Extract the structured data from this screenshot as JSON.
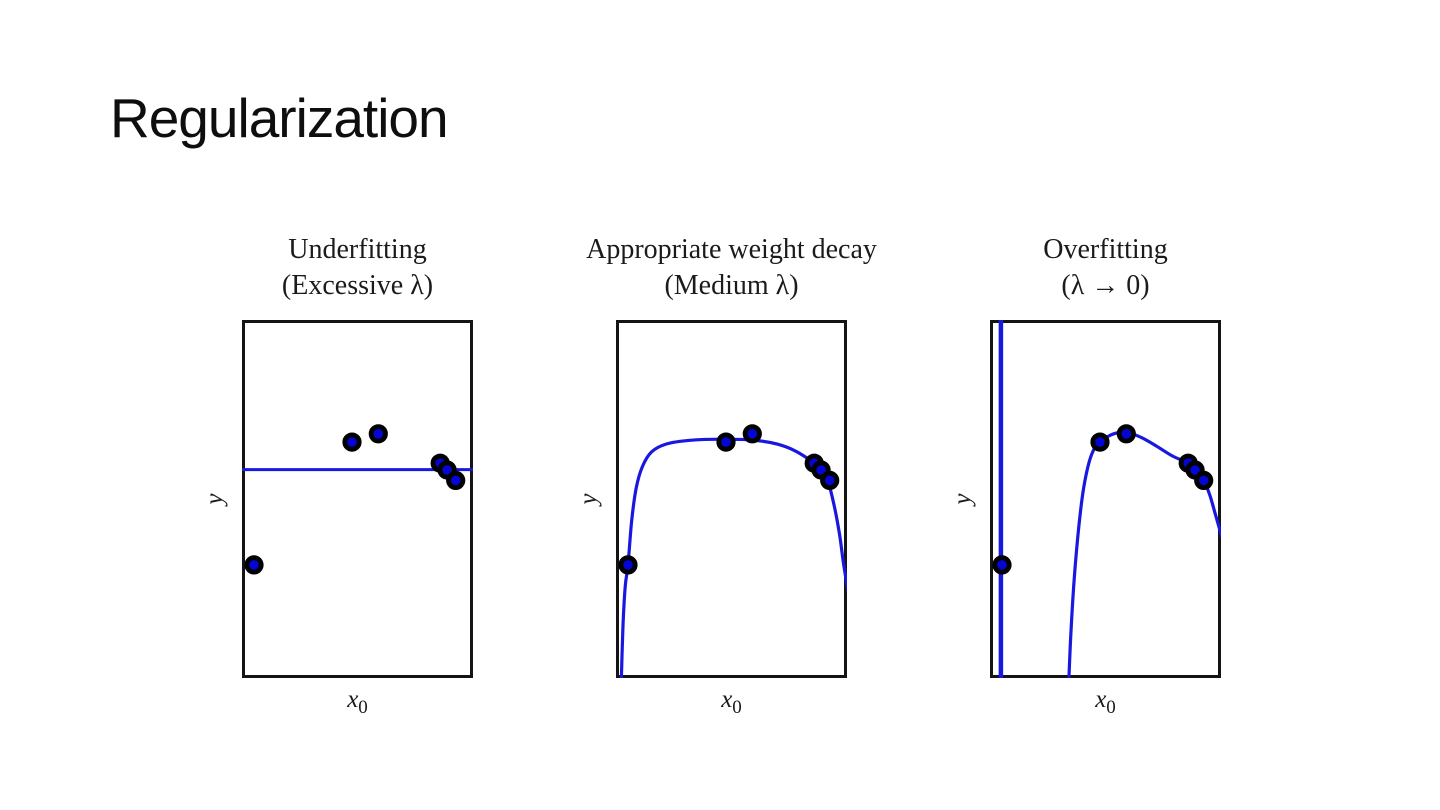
{
  "slide": {
    "title": "Regularization"
  },
  "colors": {
    "background": "#ffffff",
    "title_text": "#0e0e0e",
    "figure_text": "#1b1b1b",
    "box_border": "#141414",
    "curve": "#1818e0",
    "point_fill": "#0505d5",
    "point_stroke": "#000000"
  },
  "chart_data": [
    {
      "id": "underfitting",
      "type": "scatter",
      "title_line1": "Underfitting",
      "title_line2": "(Excessive λ)",
      "xlabel": "x",
      "xlabel_sub": "0",
      "ylabel": "y",
      "axes_note": "no ticks or numeric scale shown; coordinates below are normalized fractions of the plot box (x rightward, y downward)",
      "scatter": [
        [
          0.476,
          0.341
        ],
        [
          0.59,
          0.318
        ],
        [
          0.858,
          0.4
        ],
        [
          0.888,
          0.419
        ],
        [
          0.925,
          0.448
        ],
        [
          0.052,
          0.684
        ]
      ],
      "curves": [
        {
          "name": "flat-fit-line",
          "width": 3,
          "points": [
            [
              -0.01,
              0.418
            ],
            [
              1.01,
              0.418
            ]
          ]
        }
      ]
    },
    {
      "id": "appropriate-weight-decay",
      "type": "scatter",
      "title_line1": "Appropriate weight decay",
      "title_line2": "(Medium λ)",
      "xlabel": "x",
      "xlabel_sub": "0",
      "ylabel": "y",
      "axes_note": "no ticks or numeric scale shown; coordinates below are normalized fractions of the plot box (x rightward, y downward)",
      "scatter": [
        [
          0.476,
          0.341
        ],
        [
          0.59,
          0.318
        ],
        [
          0.858,
          0.4
        ],
        [
          0.888,
          0.419
        ],
        [
          0.925,
          0.448
        ],
        [
          0.052,
          0.684
        ]
      ],
      "curves": [
        {
          "name": "smooth-fit-curve",
          "width": 3.2,
          "points": [
            [
              0.022,
              1.03
            ],
            [
              0.03,
              0.86
            ],
            [
              0.04,
              0.745
            ],
            [
              0.052,
              0.684
            ],
            [
              0.068,
              0.56
            ],
            [
              0.088,
              0.468
            ],
            [
              0.115,
              0.408
            ],
            [
              0.155,
              0.368
            ],
            [
              0.22,
              0.346
            ],
            [
              0.32,
              0.336
            ],
            [
              0.46,
              0.333
            ],
            [
              0.6,
              0.336
            ],
            [
              0.7,
              0.347
            ],
            [
              0.78,
              0.367
            ],
            [
              0.858,
              0.4
            ],
            [
              0.888,
              0.419
            ],
            [
              0.918,
              0.452
            ],
            [
              0.945,
              0.52
            ],
            [
              0.968,
              0.6
            ],
            [
              0.985,
              0.68
            ],
            [
              1.005,
              0.76
            ]
          ]
        }
      ]
    },
    {
      "id": "overfitting",
      "type": "scatter",
      "title_line1": "Overfitting",
      "title_line2": "(λ → 0)",
      "xlabel": "x",
      "xlabel_sub": "0",
      "ylabel": "y",
      "axes_note": "no ticks or numeric scale shown; coordinates below are normalized fractions of the plot box (x rightward, y downward)",
      "scatter": [
        [
          0.476,
          0.341
        ],
        [
          0.59,
          0.318
        ],
        [
          0.858,
          0.4
        ],
        [
          0.888,
          0.419
        ],
        [
          0.925,
          0.448
        ],
        [
          0.052,
          0.684
        ]
      ],
      "curves": [
        {
          "name": "overfit-spike-line",
          "width": 4.5,
          "points": [
            [
              0.047,
              -0.02
            ],
            [
              0.047,
              1.02
            ]
          ]
        },
        {
          "name": "overfit-curve",
          "width": 3.2,
          "points": [
            [
              0.34,
              1.03
            ],
            [
              0.35,
              0.88
            ],
            [
              0.365,
              0.72
            ],
            [
              0.385,
              0.575
            ],
            [
              0.405,
              0.47
            ],
            [
              0.43,
              0.395
            ],
            [
              0.455,
              0.355
            ],
            [
              0.476,
              0.341
            ],
            [
              0.52,
              0.322
            ],
            [
              0.565,
              0.314
            ],
            [
              0.61,
              0.317
            ],
            [
              0.66,
              0.33
            ],
            [
              0.72,
              0.352
            ],
            [
              0.79,
              0.38
            ],
            [
              0.858,
              0.4
            ],
            [
              0.888,
              0.419
            ],
            [
              0.925,
              0.448
            ],
            [
              0.952,
              0.49
            ],
            [
              0.978,
              0.548
            ],
            [
              1.01,
              0.62
            ]
          ]
        }
      ]
    }
  ]
}
